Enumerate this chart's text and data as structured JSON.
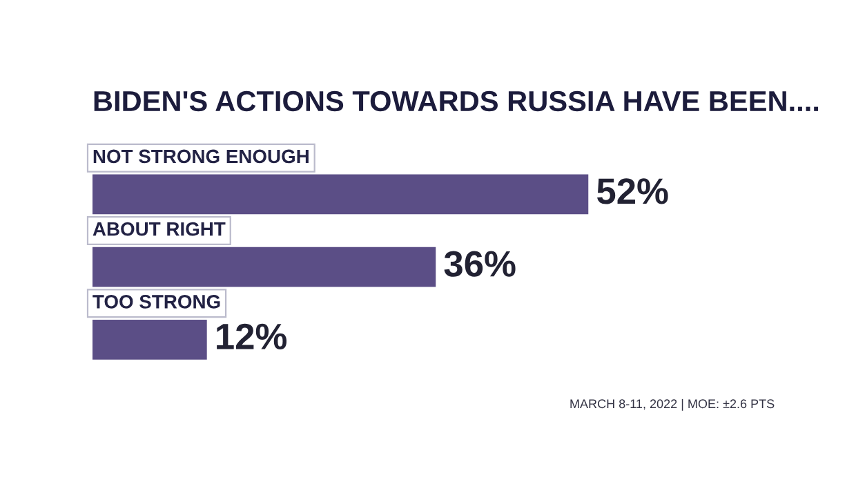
{
  "chart_data": {
    "type": "bar",
    "orientation": "horizontal",
    "title": "BIDEN'S ACTIONS TOWARDS RUSSIA HAVE BEEN....",
    "categories": [
      "NOT STRONG ENOUGH",
      "ABOUT RIGHT",
      "TOO STRONG"
    ],
    "values": [
      52,
      36,
      12
    ],
    "color": "#5b4e86",
    "value_labels": [
      "52%",
      "36%",
      "12%"
    ],
    "annotations": [
      "MARCH 8-11, 2022 | MOE: ±2.6 PTS"
    ]
  }
}
